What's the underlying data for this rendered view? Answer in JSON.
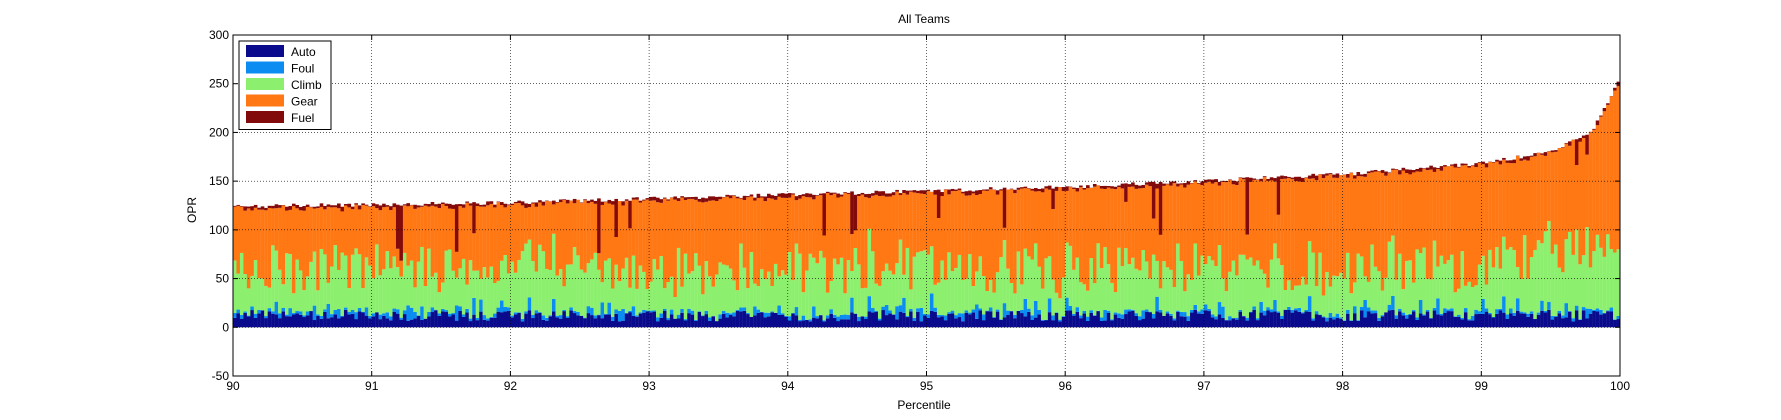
{
  "chart_data": {
    "type": "bar",
    "stacked": true,
    "title": "All Teams",
    "xlabel": "Percentile",
    "ylabel": "OPR",
    "xlim": [
      90,
      100
    ],
    "ylim": [
      -50,
      300
    ],
    "x_ticks": [
      90,
      91,
      92,
      93,
      94,
      95,
      96,
      97,
      98,
      99,
      100
    ],
    "y_ticks": [
      -50,
      0,
      50,
      100,
      150,
      200,
      250,
      300
    ],
    "grid": true,
    "legend_position": "top-left",
    "series": [
      {
        "name": "Auto",
        "color": "#0a0a8c"
      },
      {
        "name": "Foul",
        "color": "#0a8cf0"
      },
      {
        "name": "Climb",
        "color": "#8cf06e"
      },
      {
        "name": "Gear",
        "color": "#ff7814"
      },
      {
        "name": "Fuel",
        "color": "#820a0a"
      }
    ],
    "bar_count": 400,
    "total_envelope": {
      "percentile": [
        90,
        91,
        92,
        93,
        94,
        95,
        96,
        97,
        98,
        99,
        99.5,
        99.8,
        100
      ],
      "opr": [
        124,
        126,
        128,
        132,
        136,
        140,
        144,
        150,
        157,
        168,
        180,
        200,
        255
      ]
    },
    "typical_components": {
      "auto": 12,
      "foul": 4,
      "climb": 45
    }
  }
}
